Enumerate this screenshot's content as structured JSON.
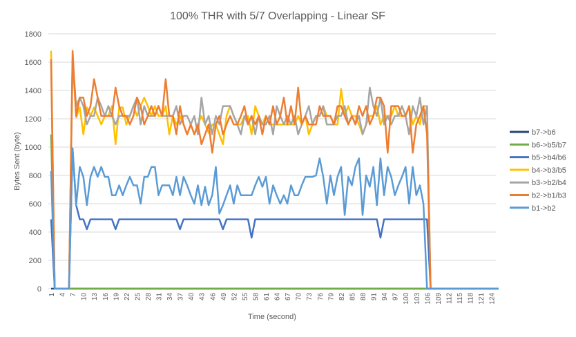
{
  "chart_data": {
    "type": "line",
    "title": "100% THR with 5/7 Overlapping - Linear SF",
    "xlabel": "Time (second)",
    "ylabel": "Bytes Sent (byte)",
    "ylim": [
      0,
      1800
    ],
    "yticks": [
      0,
      200,
      400,
      600,
      800,
      1000,
      1200,
      1400,
      1600,
      1800
    ],
    "x_range": [
      1,
      126
    ],
    "xticks": [
      1,
      4,
      7,
      10,
      13,
      16,
      19,
      22,
      25,
      28,
      31,
      34,
      37,
      40,
      43,
      46,
      49,
      52,
      55,
      58,
      61,
      64,
      67,
      70,
      73,
      76,
      79,
      82,
      85,
      88,
      91,
      94,
      97,
      100,
      103,
      106,
      109,
      112,
      115,
      118,
      121,
      124
    ],
    "grid": "horizontal",
    "legend_position": "right",
    "series": [
      {
        "name": "b7->b6",
        "color": "#264478",
        "values": [
          0,
          0,
          0,
          0,
          0,
          0,
          0,
          0,
          0,
          0,
          0,
          0,
          0,
          0,
          0,
          0,
          0,
          0,
          0,
          0,
          0,
          0,
          0,
          0,
          0,
          0,
          0,
          0,
          0,
          0,
          0,
          0,
          0,
          0,
          0,
          0,
          0,
          0,
          0,
          0,
          0,
          0,
          0,
          0,
          0,
          0,
          0,
          0,
          0,
          0,
          0,
          0,
          0,
          0,
          0,
          0,
          0,
          0,
          0,
          0,
          0,
          0,
          0,
          0,
          0,
          0,
          0,
          0,
          0,
          0,
          0,
          0,
          0,
          0,
          0,
          0,
          0,
          0,
          0,
          0,
          0,
          0,
          0,
          0,
          0,
          0,
          0,
          0,
          0,
          0,
          0,
          0,
          0,
          0,
          0,
          0,
          0,
          0,
          0,
          0,
          0,
          0,
          0,
          0,
          0,
          0,
          0,
          0,
          0,
          0,
          0,
          0,
          0,
          0,
          0,
          0,
          0,
          0,
          0,
          0,
          0,
          0,
          0,
          0,
          0,
          0
        ]
      },
      {
        "name": "b6->b5/b7",
        "color": "#70AD47",
        "values": [
          1090,
          0,
          0,
          0,
          0,
          0,
          0,
          0,
          0,
          0,
          0,
          0,
          0,
          0,
          0,
          0,
          0,
          0,
          0,
          0,
          0,
          0,
          0,
          0,
          0,
          0,
          0,
          0,
          0,
          0,
          0,
          0,
          0,
          0,
          0,
          0,
          0,
          0,
          0,
          0,
          0,
          0,
          0,
          0,
          0,
          0,
          0,
          0,
          0,
          0,
          0,
          0,
          0,
          0,
          0,
          0,
          0,
          0,
          0,
          0,
          0,
          0,
          0,
          0,
          0,
          0,
          0,
          0,
          0,
          0,
          0,
          0,
          0,
          0,
          0,
          0,
          0,
          0,
          0,
          0,
          0,
          0,
          0,
          0,
          0,
          0,
          0,
          0,
          0,
          0,
          0,
          0,
          0,
          0,
          0,
          0,
          0,
          0,
          0,
          0,
          0,
          0,
          0,
          0,
          0,
          0,
          0,
          0,
          0,
          0,
          0,
          0,
          0,
          0,
          0,
          0,
          0,
          0,
          0,
          0,
          0,
          0,
          0,
          0,
          0,
          0
        ]
      },
      {
        "name": "b5->b4/b6",
        "color": "#4472C4",
        "values": [
          490,
          0,
          0,
          0,
          0,
          0,
          990,
          590,
          490,
          490,
          420,
          490,
          490,
          490,
          490,
          490,
          490,
          490,
          420,
          490,
          490,
          490,
          490,
          490,
          490,
          490,
          490,
          490,
          490,
          490,
          490,
          490,
          490,
          490,
          490,
          490,
          420,
          490,
          490,
          490,
          490,
          490,
          490,
          490,
          490,
          490,
          490,
          490,
          420,
          490,
          490,
          490,
          490,
          490,
          490,
          490,
          360,
          490,
          490,
          490,
          490,
          490,
          490,
          490,
          490,
          490,
          490,
          490,
          490,
          490,
          490,
          490,
          490,
          490,
          490,
          490,
          490,
          490,
          490,
          490,
          490,
          490,
          490,
          490,
          490,
          490,
          490,
          490,
          490,
          490,
          490,
          490,
          360,
          490,
          490,
          490,
          490,
          490,
          490,
          490,
          490,
          490,
          490,
          490,
          490,
          490,
          0,
          0,
          0,
          0,
          0,
          0,
          0,
          0,
          0,
          0,
          0,
          0,
          0,
          0,
          0,
          0,
          0,
          0,
          0,
          0
        ]
      },
      {
        "name": "b4->b3/b5",
        "color": "#FFC000",
        "values": [
          1680,
          0,
          0,
          0,
          0,
          0,
          1620,
          1210,
          1280,
          1090,
          1280,
          1220,
          1280,
          1220,
          1160,
          1220,
          1220,
          1290,
          1020,
          1280,
          1280,
          1160,
          1220,
          1290,
          1220,
          1290,
          1350,
          1290,
          1220,
          1290,
          1220,
          1220,
          1290,
          1090,
          1220,
          1160,
          1220,
          1160,
          1090,
          1160,
          1090,
          1160,
          1220,
          1160,
          1100,
          1160,
          1160,
          1090,
          1020,
          1220,
          1290,
          1220,
          1160,
          1160,
          1220,
          1220,
          1090,
          1290,
          1220,
          1160,
          1220,
          1160,
          1160,
          1160,
          1160,
          1160,
          1160,
          1160,
          1160,
          1220,
          1160,
          1220,
          1090,
          1160,
          1220,
          1220,
          1290,
          1220,
          1220,
          1160,
          1160,
          1410,
          1220,
          1290,
          1220,
          1220,
          1160,
          1090,
          1160,
          1220,
          1220,
          1290,
          1160,
          1220,
          1220,
          1220,
          1290,
          1220,
          1220,
          1220,
          1290,
          1160,
          1220,
          1160,
          1290,
          1290,
          0,
          0,
          0,
          0,
          0,
          0,
          0,
          0,
          0,
          0,
          0,
          0,
          0,
          0,
          0,
          0,
          0,
          0,
          0,
          0
        ]
      },
      {
        "name": "b3->b2/b4",
        "color": "#A5A5A5",
        "values": [
          1600,
          0,
          0,
          0,
          0,
          0,
          1620,
          1290,
          1350,
          1290,
          1160,
          1220,
          1220,
          1350,
          1290,
          1220,
          1290,
          1220,
          1160,
          1220,
          1220,
          1220,
          1220,
          1290,
          1350,
          1160,
          1290,
          1220,
          1220,
          1220,
          1290,
          1220,
          1220,
          1220,
          1220,
          1290,
          1160,
          1220,
          1220,
          1160,
          1220,
          1090,
          1350,
          1160,
          1220,
          1090,
          1220,
          1160,
          1290,
          1290,
          1290,
          1220,
          1160,
          1090,
          1220,
          1160,
          1220,
          1090,
          1220,
          1160,
          1160,
          1220,
          1090,
          1290,
          1220,
          1160,
          1220,
          1160,
          1220,
          1090,
          1160,
          1220,
          1290,
          1160,
          1220,
          1220,
          1290,
          1160,
          1160,
          1160,
          1220,
          1220,
          1290,
          1160,
          1220,
          1160,
          1220,
          1090,
          1160,
          1420,
          1290,
          1220,
          1350,
          1160,
          1220,
          1160,
          1220,
          1220,
          1290,
          1220,
          1090,
          1290,
          1220,
          1350,
          1160,
          1290,
          0,
          0,
          0,
          0,
          0,
          0,
          0,
          0,
          0,
          0,
          0,
          0,
          0,
          0,
          0,
          0,
          0,
          0,
          0,
          0
        ]
      },
      {
        "name": "b2->b1/b3",
        "color": "#ED7D31",
        "values": [
          1620,
          0,
          0,
          0,
          0,
          0,
          1680,
          1220,
          1350,
          1350,
          1220,
          1290,
          1480,
          1350,
          1220,
          1220,
          1220,
          1220,
          1420,
          1290,
          1220,
          1220,
          1160,
          1220,
          1350,
          1290,
          1160,
          1220,
          1290,
          1220,
          1290,
          1220,
          1480,
          1220,
          1220,
          1090,
          1290,
          1160,
          1090,
          1160,
          1090,
          1160,
          1020,
          1090,
          1160,
          960,
          1160,
          1220,
          1090,
          1160,
          1220,
          1160,
          1160,
          1220,
          1290,
          1160,
          1220,
          1160,
          1220,
          1090,
          1220,
          1160,
          1290,
          1160,
          1220,
          1350,
          1160,
          1290,
          1160,
          1420,
          1160,
          1220,
          1160,
          1160,
          1160,
          1290,
          1220,
          1220,
          1220,
          1160,
          1290,
          1290,
          1220,
          1160,
          1220,
          1160,
          1290,
          1220,
          1290,
          1160,
          1220,
          1350,
          1350,
          1290,
          960,
          1290,
          1290,
          1290,
          1220,
          1220,
          1290,
          960,
          1160,
          1220,
          1290,
          1090,
          0,
          0,
          0,
          0,
          0,
          0,
          0,
          0,
          0,
          0,
          0,
          0,
          0,
          0,
          0,
          0,
          0,
          0,
          0,
          0
        ]
      },
      {
        "name": "b1->b2",
        "color": "#5B9BD5",
        "values": [
          830,
          0,
          0,
          0,
          0,
          0,
          990,
          590,
          860,
          790,
          590,
          790,
          860,
          790,
          860,
          790,
          790,
          660,
          660,
          730,
          660,
          730,
          790,
          730,
          730,
          600,
          790,
          790,
          860,
          860,
          660,
          730,
          730,
          730,
          660,
          790,
          660,
          790,
          730,
          660,
          600,
          730,
          590,
          720,
          590,
          660,
          860,
          530,
          590,
          660,
          730,
          600,
          730,
          660,
          660,
          660,
          660,
          730,
          790,
          720,
          790,
          600,
          730,
          660,
          600,
          660,
          600,
          730,
          660,
          660,
          730,
          790,
          790,
          790,
          800,
          920,
          790,
          600,
          800,
          660,
          790,
          860,
          520,
          790,
          730,
          860,
          920,
          520,
          800,
          720,
          860,
          590,
          920,
          660,
          860,
          790,
          660,
          730,
          790,
          860,
          600,
          860,
          660,
          730,
          600,
          0,
          0,
          0,
          0,
          0,
          0,
          0,
          0,
          0,
          0,
          0,
          0,
          0,
          0,
          0,
          0,
          0,
          0,
          0,
          0,
          0
        ]
      }
    ]
  }
}
